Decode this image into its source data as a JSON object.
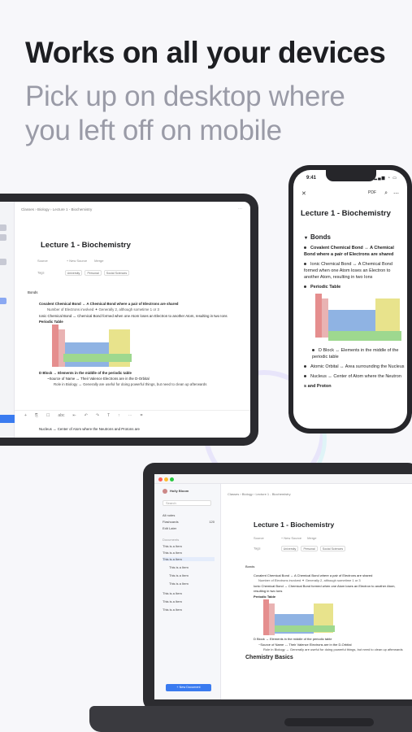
{
  "hero": {
    "title": "Works on all your devices",
    "subtitle": "Pick up on desktop where you left off on mobile"
  },
  "document": {
    "title": "Lecture 1 - Biochemistry",
    "breadcrumb": "Classes  ›  Biology  ›  Lecture 1 - Biochemistry",
    "section": "Bonds",
    "source_label": "Source",
    "new_source": "+ New Source",
    "merge": "Merge",
    "tags_label": "Tags",
    "tags": [
      "University",
      "Personal",
      "Social Sciences"
    ],
    "covalent": "Covalent Chemical Bond ↔ A Chemical Bond where a pair of Electrons are shared",
    "covalent_sub": "Number of Electrons involved ✦ Generally 2, although sometime 1 or 3",
    "ionic": "Ionic Chemical Bond ↔ Chemical Bond formed when one Atom loses an Electron to another Atom, resulting in two Ions",
    "periodic": "Periodic Table",
    "dblock": "D Block ↔ Elements in the middle of the periodic table",
    "dblock_sub": "~Source of Name ↔ Their Valence Electrons are in the D-Orbital",
    "dblock_role": "Role in Biology ↔ Generally are useful for doing powerful things, but need to clean up afterwards",
    "nucleus": "Nucleus ↔ Center of Atom where the Neutrons and Protons are",
    "chem_basics": "Chemistry Basics"
  },
  "phone": {
    "time": "9:41",
    "title": "Lecture 1 -  Biochemistry",
    "section": "Bonds",
    "covalent": "Covalent Chemical Bond ↔ A Chemical Bond where a pair of Electrons are shared",
    "ionic": "Ionic Chemical Bond ↔ A Chemical Bond formed when one Atom loses an Electron to another Atom, resulting in two Ions",
    "periodic": "Periodic Table",
    "dblock": "D Block ↔ Elements in the middle of the periodic table",
    "atomic": "Atomic Orbital ↔ Area surrounding the Nucleus",
    "nucleus": "Nucleus ↔ Center of Atom where the Neutron",
    "proton": "s and Proton"
  },
  "laptop": {
    "user": "Holly Bloom",
    "search": "Search",
    "menu": [
      {
        "label": "All notes",
        "count": ""
      },
      {
        "label": "Flashcards",
        "count": "120"
      },
      {
        "label": "Edit Later",
        "count": ""
      }
    ],
    "documents_header": "Documents",
    "docs": [
      "This is a Item",
      "This is a Item",
      "This is a Item",
      "This is a Item",
      "This is a Item",
      "This is a Item",
      "This is a Item",
      "This is a Item",
      "This is a Item"
    ],
    "new_document": "+ New Document"
  },
  "tablet": {
    "toolbar": [
      "+",
      "⎘",
      "☐",
      "abc",
      "⇤",
      "↶",
      "↷",
      "T",
      "↑",
      "⋯",
      "⌗"
    ]
  }
}
